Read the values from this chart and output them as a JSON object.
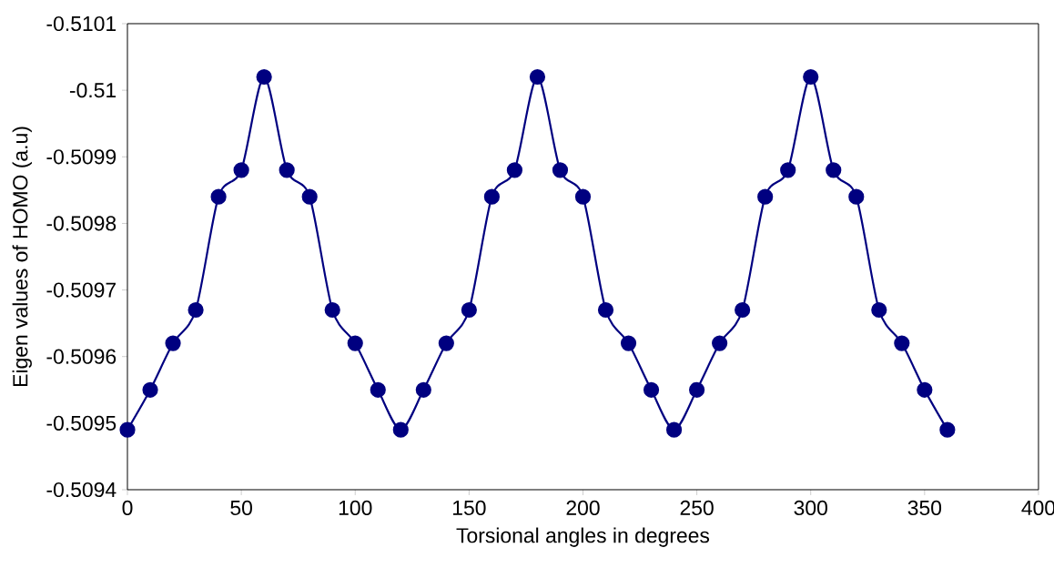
{
  "chart_data": {
    "type": "line",
    "xlabel": "Torsional angles in degrees",
    "ylabel": "Eigen values of HOMO (a.u)",
    "x": [
      0,
      10,
      20,
      30,
      40,
      50,
      60,
      70,
      80,
      90,
      100,
      110,
      120,
      130,
      140,
      150,
      160,
      170,
      180,
      190,
      200,
      210,
      220,
      230,
      240,
      250,
      260,
      270,
      280,
      290,
      300,
      310,
      320,
      330,
      340,
      350,
      360
    ],
    "series": [
      {
        "color": "#000080",
        "values": [
          -0.50949,
          -0.50955,
          -0.50962,
          -0.50967,
          -0.50984,
          -0.50988,
          -0.51002,
          -0.50988,
          -0.50984,
          -0.50967,
          -0.50962,
          -0.50955,
          -0.50949,
          -0.50955,
          -0.50962,
          -0.50967,
          -0.50984,
          -0.50988,
          -0.51002,
          -0.50988,
          -0.50984,
          -0.50967,
          -0.50962,
          -0.50955,
          -0.50949,
          -0.50955,
          -0.50962,
          -0.50967,
          -0.50984,
          -0.50988,
          -0.51002,
          -0.50988,
          -0.50984,
          -0.50967,
          -0.50962,
          -0.50955,
          -0.50949
        ]
      }
    ],
    "xlim": [
      0,
      400
    ],
    "xticks": [
      0,
      50,
      100,
      150,
      200,
      250,
      300,
      350,
      400
    ],
    "ylim": [
      -0.5094,
      -0.5101
    ],
    "yticks": [
      -0.5101,
      -0.51,
      -0.5099,
      -0.5098,
      -0.5097,
      -0.5096,
      -0.5095,
      -0.5094
    ],
    "grid": false,
    "marker": "circle",
    "line_style": "solid"
  }
}
